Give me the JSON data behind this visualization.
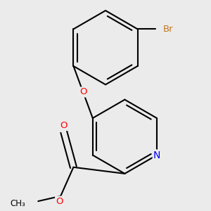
{
  "background_color": "#EBEBEB",
  "bond_color": "#000000",
  "bond_width": 1.5,
  "atom_colors": {
    "O": "#FF0000",
    "N": "#0000FF",
    "Br": "#C07820",
    "C": "#000000"
  },
  "font_size": 9.5,
  "figsize": [
    3.0,
    3.0
  ],
  "dpi": 100
}
